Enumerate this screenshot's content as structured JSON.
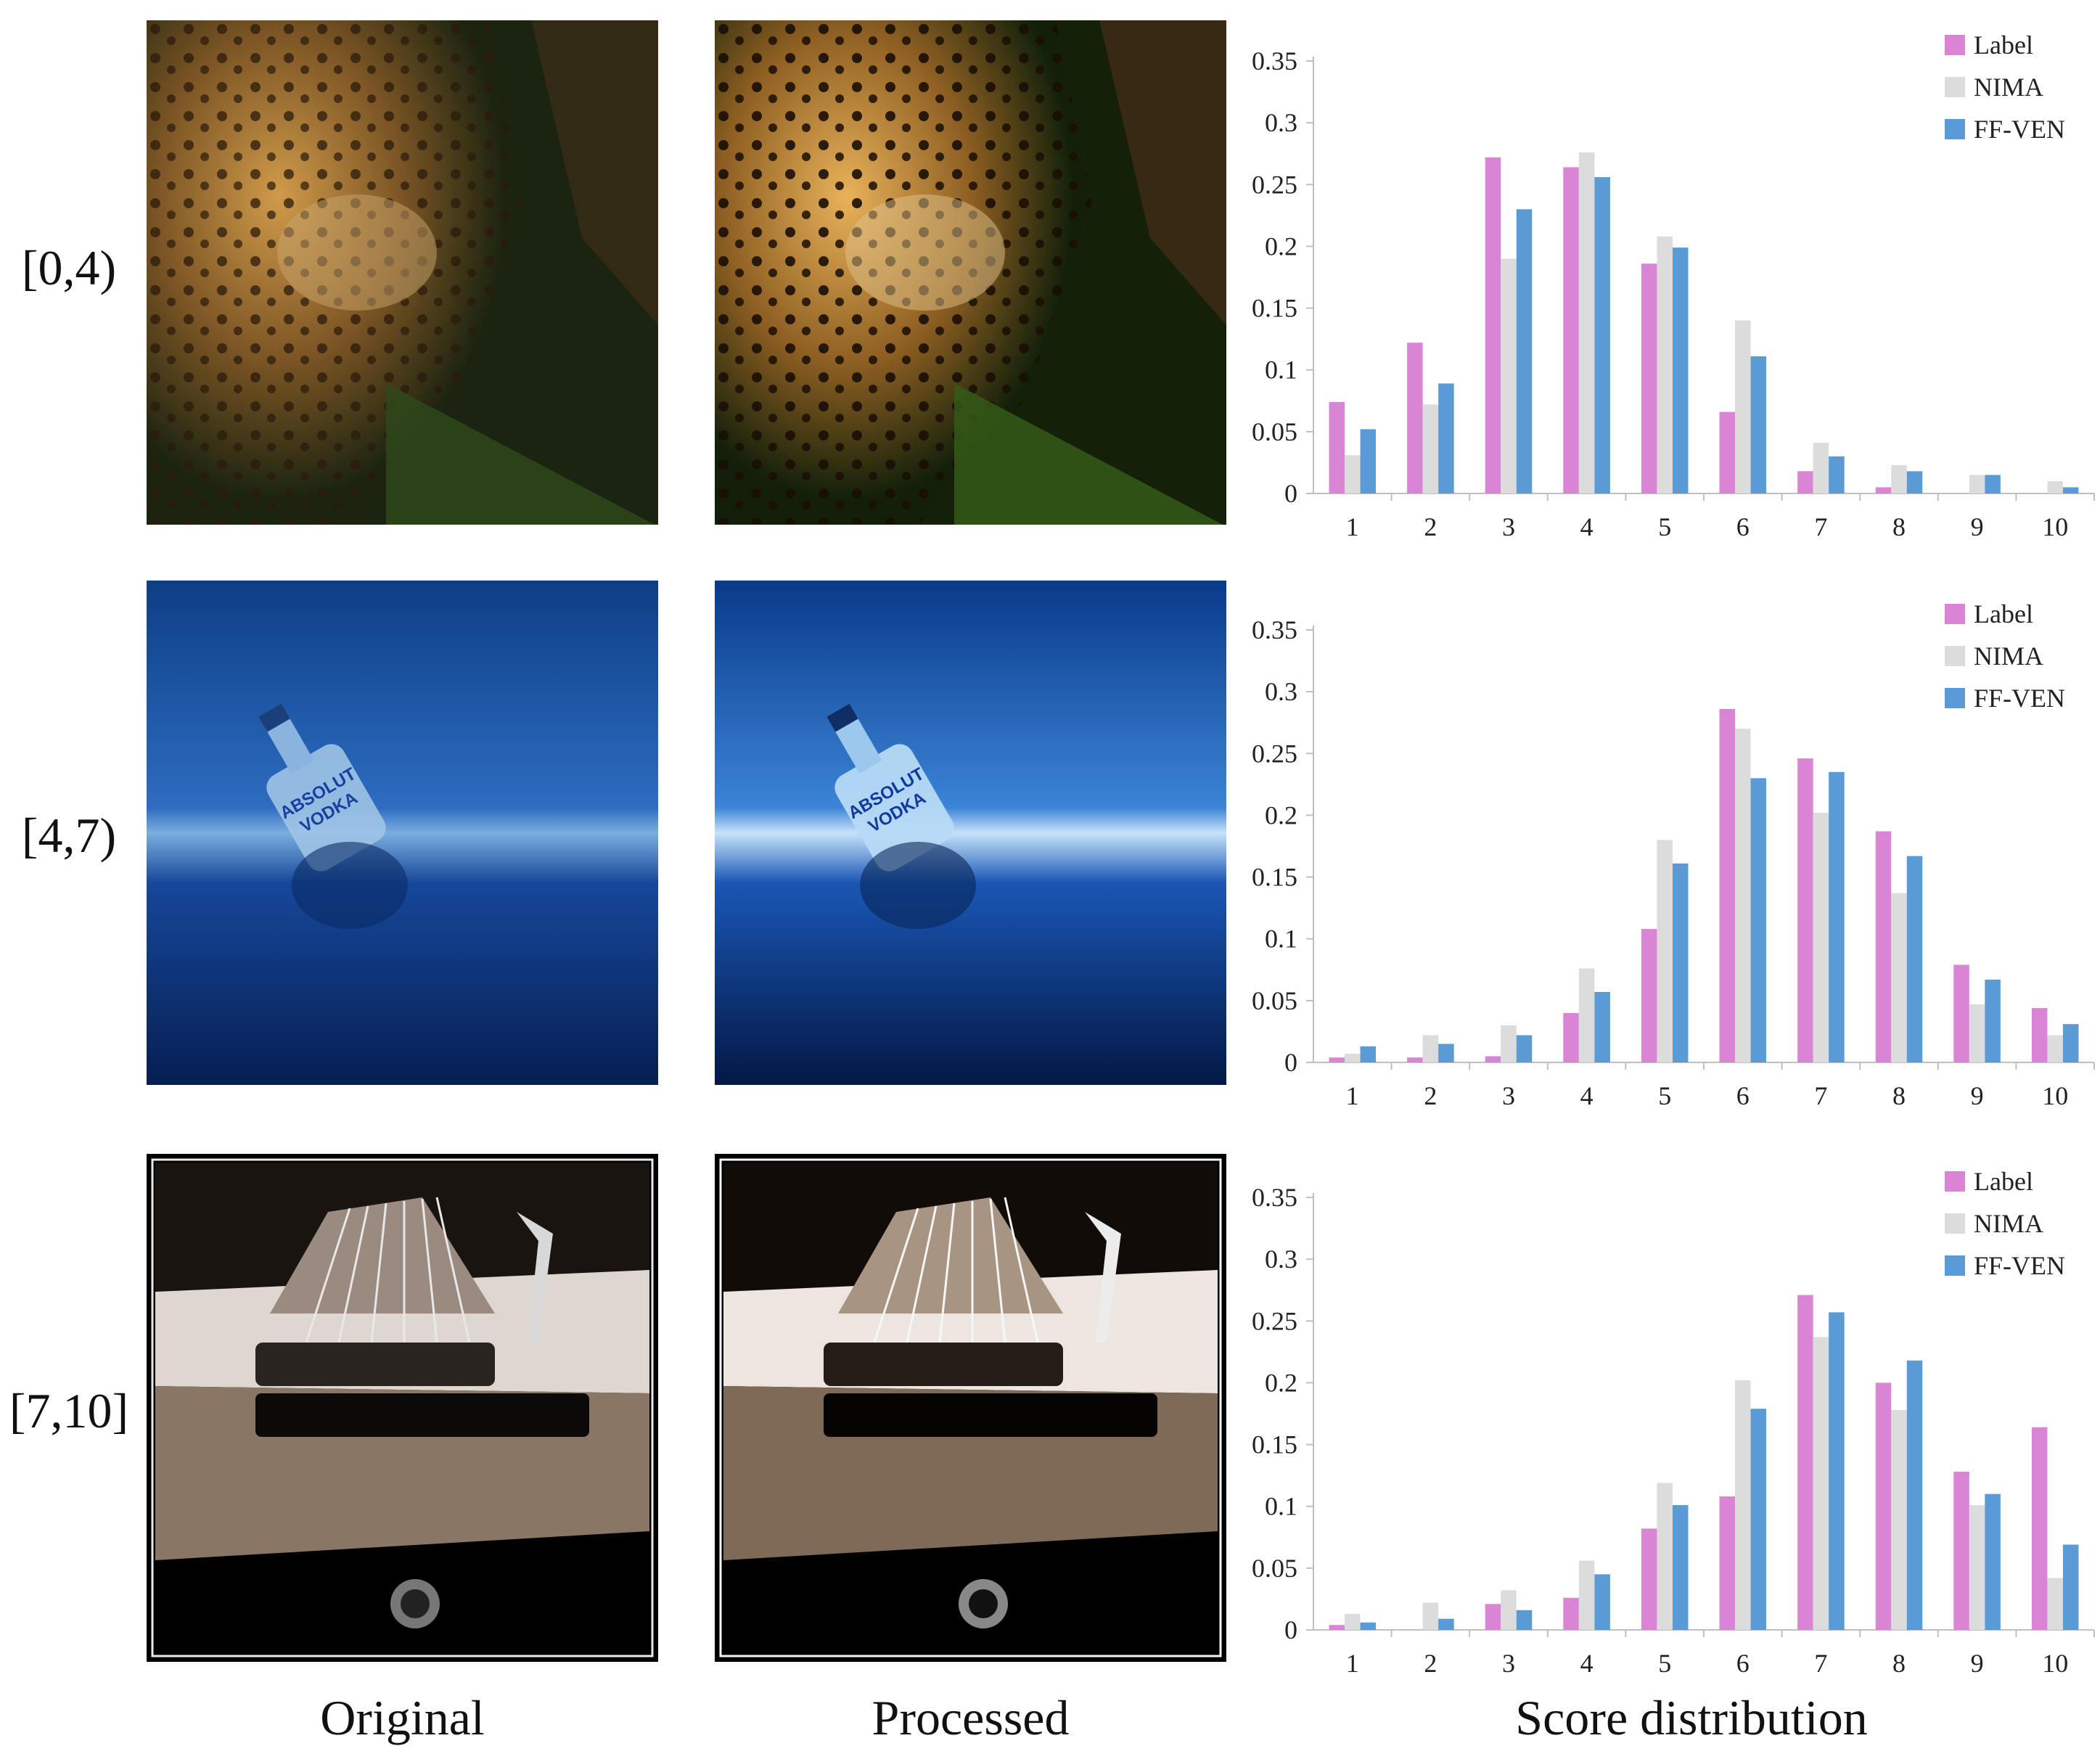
{
  "row_labels": [
    "[0,4)",
    "[4,7)",
    "[7,10]"
  ],
  "column_labels": {
    "original": "Original",
    "processed": "Processed",
    "distribution": "Score distribution"
  },
  "colors": {
    "label": "#DA84D6",
    "nima": "#DCDCDC",
    "ffven": "#5B9BD5",
    "axis": "#BFBFBF"
  },
  "image_icons": [
    "jaguar-photo",
    "vodka-bottle-photo",
    "guitar-bridge-photo"
  ],
  "bottle_text": {
    "line1": "ABSOLUT",
    "line2": "VODKA"
  },
  "chart_data": [
    {
      "type": "bar",
      "categories": [
        "1",
        "2",
        "3",
        "4",
        "5",
        "6",
        "7",
        "8",
        "9",
        "10"
      ],
      "ylim": [
        0,
        0.35
      ],
      "yticks": [
        "0",
        "0.05",
        "0.1",
        "0.15",
        "0.2",
        "0.25",
        "0.3",
        "0.35"
      ],
      "legend_position": "top-right",
      "series": [
        {
          "name": "Label",
          "values": [
            0.074,
            0.122,
            0.272,
            0.264,
            0.186,
            0.066,
            0.018,
            0.005,
            0.0,
            0.0
          ]
        },
        {
          "name": "NIMA",
          "values": [
            0.031,
            0.072,
            0.19,
            0.276,
            0.208,
            0.14,
            0.041,
            0.023,
            0.015,
            0.01
          ]
        },
        {
          "name": "FF-VEN",
          "values": [
            0.052,
            0.089,
            0.23,
            0.256,
            0.199,
            0.111,
            0.03,
            0.018,
            0.015,
            0.005
          ]
        }
      ]
    },
    {
      "type": "bar",
      "categories": [
        "1",
        "2",
        "3",
        "4",
        "5",
        "6",
        "7",
        "8",
        "9",
        "10"
      ],
      "ylim": [
        0,
        0.35
      ],
      "yticks": [
        "0",
        "0.05",
        "0.1",
        "0.15",
        "0.2",
        "0.25",
        "0.3",
        "0.35"
      ],
      "legend_position": "top-right",
      "series": [
        {
          "name": "Label",
          "values": [
            0.004,
            0.004,
            0.005,
            0.04,
            0.108,
            0.286,
            0.246,
            0.187,
            0.079,
            0.044
          ]
        },
        {
          "name": "NIMA",
          "values": [
            0.007,
            0.022,
            0.03,
            0.076,
            0.18,
            0.27,
            0.202,
            0.137,
            0.047,
            0.022
          ]
        },
        {
          "name": "FF-VEN",
          "values": [
            0.013,
            0.015,
            0.022,
            0.057,
            0.161,
            0.23,
            0.235,
            0.167,
            0.067,
            0.031
          ]
        }
      ]
    },
    {
      "type": "bar",
      "categories": [
        "1",
        "2",
        "3",
        "4",
        "5",
        "6",
        "7",
        "8",
        "9",
        "10"
      ],
      "ylim": [
        0,
        0.35
      ],
      "yticks": [
        "0",
        "0.05",
        "0.1",
        "0.15",
        "0.2",
        "0.25",
        "0.3",
        "0.35"
      ],
      "legend_position": "top-right",
      "series": [
        {
          "name": "Label",
          "values": [
            0.004,
            0.0,
            0.021,
            0.026,
            0.082,
            0.108,
            0.271,
            0.2,
            0.128,
            0.164
          ]
        },
        {
          "name": "NIMA",
          "values": [
            0.013,
            0.022,
            0.032,
            0.056,
            0.119,
            0.202,
            0.237,
            0.178,
            0.101,
            0.042
          ]
        },
        {
          "name": "FF-VEN",
          "values": [
            0.006,
            0.009,
            0.016,
            0.045,
            0.101,
            0.179,
            0.257,
            0.218,
            0.11,
            0.069
          ]
        }
      ]
    }
  ]
}
